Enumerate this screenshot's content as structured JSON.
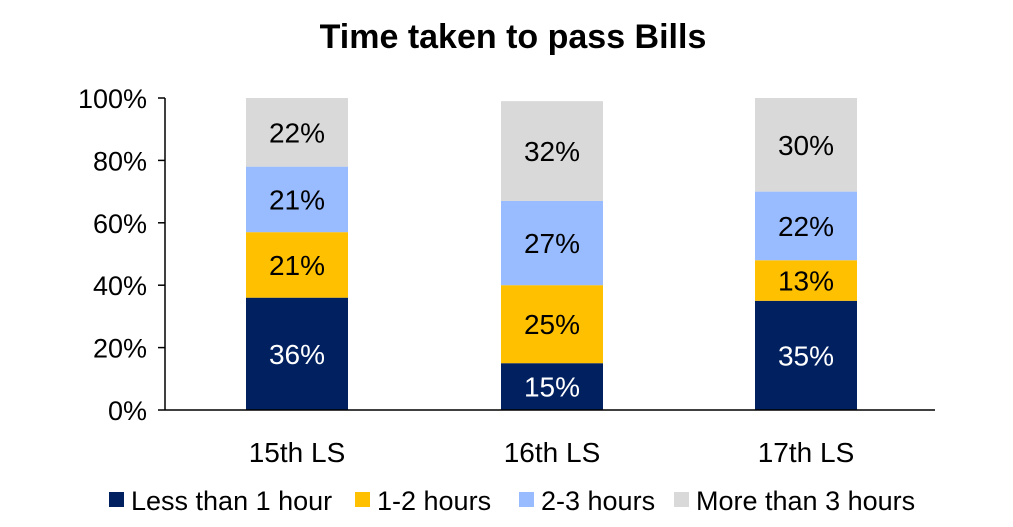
{
  "chart_data": {
    "type": "bar",
    "stacked": true,
    "title": "Time taken to pass Bills",
    "xlabel": "",
    "ylabel": "",
    "ylim": [
      0,
      100
    ],
    "yticks": [
      "0%",
      "20%",
      "40%",
      "60%",
      "80%",
      "100%"
    ],
    "categories": [
      "15th LS",
      "16th LS",
      "17th LS"
    ],
    "series": [
      {
        "name": "Less than 1 hour",
        "color": "#002060",
        "label_color": "#ffffff",
        "values": [
          36,
          15,
          35
        ],
        "labels": [
          "36%",
          "15%",
          "35%"
        ]
      },
      {
        "name": "1-2 hours",
        "color": "#FFC000",
        "label_color": "#000000",
        "values": [
          21,
          25,
          13
        ],
        "labels": [
          "21%",
          "25%",
          "13%"
        ]
      },
      {
        "name": "2-3 hours",
        "color": "#99BBFF",
        "label_color": "#000000",
        "values": [
          21,
          27,
          22
        ],
        "labels": [
          "21%",
          "27%",
          "22%"
        ]
      },
      {
        "name": "More than 3 hours",
        "color": "#D9D9D9",
        "label_color": "#000000",
        "values": [
          22,
          32,
          30
        ],
        "labels": [
          "22%",
          "32%",
          "30%"
        ]
      }
    ],
    "legend_position": "bottom",
    "grid": false
  }
}
